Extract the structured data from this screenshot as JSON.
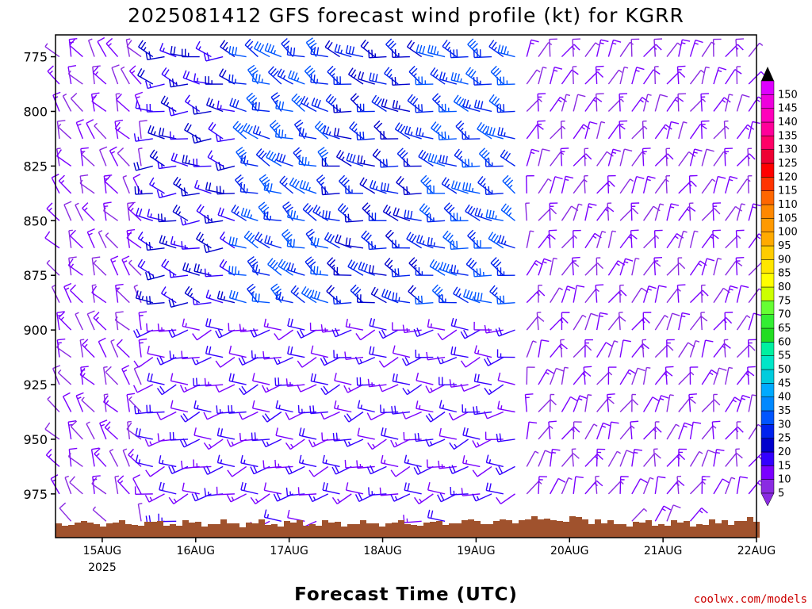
{
  "chart_data": {
    "type": "wind-barb-profile",
    "title": "2025081412 GFS forecast wind profile (kt) for KGRR",
    "xlabel": "Forecast Time (UTC)",
    "ylabel": "",
    "credit": "coolwx.com/models",
    "x_start": "2025-08-14 12Z",
    "x_end": "2025-08-22 00Z",
    "xticks": [
      {
        "label": "15AUG",
        "sublabel": "2025",
        "hour": 12
      },
      {
        "label": "16AUG",
        "sublabel": "",
        "hour": 36
      },
      {
        "label": "17AUG",
        "sublabel": "",
        "hour": 60
      },
      {
        "label": "18AUG",
        "sublabel": "",
        "hour": 84
      },
      {
        "label": "19AUG",
        "sublabel": "",
        "hour": 108
      },
      {
        "label": "20AUG",
        "sublabel": "",
        "hour": 132
      },
      {
        "label": "21AUG",
        "sublabel": "",
        "hour": 156
      },
      {
        "label": "22AUG",
        "sublabel": "",
        "hour": 180
      }
    ],
    "yaxis": {
      "label": "",
      "unit": "hPa",
      "ylim": [
        765,
        995
      ],
      "inverted": true,
      "ticks": [
        "775",
        "800",
        "825",
        "850",
        "875",
        "900",
        "925",
        "950",
        "975"
      ]
    },
    "colorbar": {
      "labels": [
        "5",
        "10",
        "15",
        "20",
        "25",
        "30",
        "35",
        "40",
        "45",
        "50",
        "55",
        "60",
        "65",
        "70",
        "75",
        "80",
        "85",
        "90",
        "95",
        "100",
        "105",
        "110",
        "115",
        "120",
        "125",
        "130",
        "135",
        "140",
        "145",
        "150"
      ],
      "colors": [
        "#8a2be2",
        "#7a00ff",
        "#3300ff",
        "#0000cc",
        "#0022ee",
        "#0055ff",
        "#0088ff",
        "#00aaff",
        "#00ccdd",
        "#00e6c8",
        "#00f0a0",
        "#22dd22",
        "#33ee33",
        "#66ff33",
        "#ccff00",
        "#ffff00",
        "#ffe600",
        "#ffcc00",
        "#ffaa00",
        "#ff9900",
        "#ff8800",
        "#ff6600",
        "#ff3300",
        "#ff0000",
        "#ee0033",
        "#ff0066",
        "#ff0099",
        "#ff00bb",
        "#ee00dd",
        "#dd00ff"
      ]
    },
    "levels_hPa": [
      775,
      787.5,
      800,
      812.5,
      825,
      837.5,
      850,
      862.5,
      875,
      887.5,
      900,
      912.5,
      925,
      937.5,
      950,
      962.5,
      975,
      987.5
    ],
    "surface_pressure_hPa_approx": 985,
    "wind_regimes": [
      {
        "from_hour": 0,
        "to_hour": 24,
        "layer": "all",
        "dir_deg": 330,
        "speed_kt": 10
      },
      {
        "from_hour": 24,
        "to_hour": 48,
        "layer": "upper",
        "dir_deg": 280,
        "speed_kt": 20
      },
      {
        "from_hour": 48,
        "to_hour": 72,
        "layer": "upper",
        "dir_deg": 300,
        "speed_kt": 30
      },
      {
        "from_hour": 72,
        "to_hour": 96,
        "layer": "upper",
        "dir_deg": 290,
        "speed_kt": 25
      },
      {
        "from_hour": 96,
        "to_hour": 120,
        "layer": "upper",
        "dir_deg": 290,
        "speed_kt": 30
      },
      {
        "from_hour": 120,
        "to_hour": 156,
        "layer": "all",
        "dir_deg": 20,
        "speed_kt": 10
      },
      {
        "from_hour": 156,
        "to_hour": 180,
        "layer": "all",
        "dir_deg": 20,
        "speed_kt": 10
      },
      {
        "from_hour": 24,
        "to_hour": 120,
        "layer": "lower",
        "dir_deg": 260,
        "speed_kt": 15
      }
    ]
  }
}
